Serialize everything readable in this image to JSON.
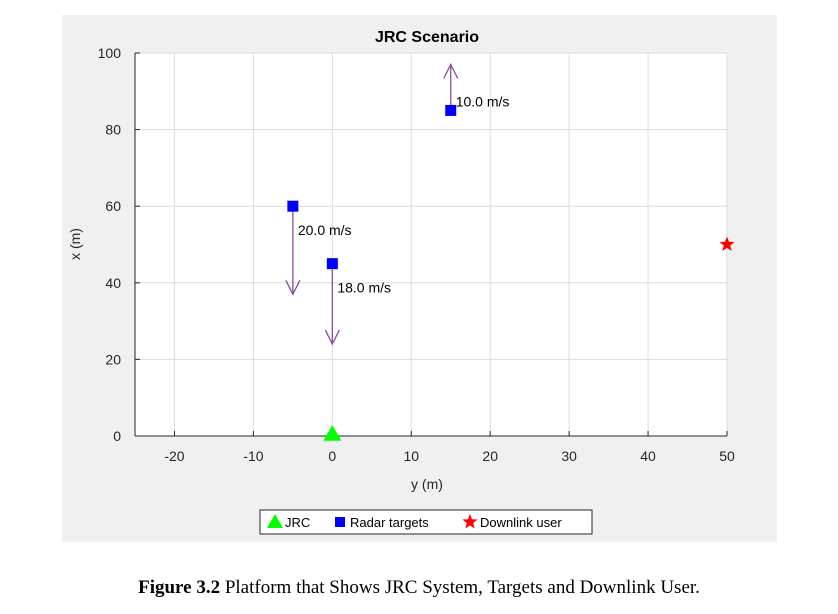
{
  "chart_data": {
    "type": "scatter",
    "title": "JRC Scenario",
    "xlabel": "y (m)",
    "ylabel": "x (m)",
    "xlim": [
      -25,
      50
    ],
    "ylim": [
      0,
      100
    ],
    "xticks": [
      -20,
      -10,
      0,
      10,
      20,
      30,
      40,
      50
    ],
    "yticks": [
      0,
      20,
      40,
      60,
      80,
      100
    ],
    "grid": true,
    "legend_position": "bottom-outside",
    "series": [
      {
        "name": "JRC",
        "marker": "triangle",
        "color": "#00ff00",
        "points": [
          {
            "x": 0,
            "y": 0
          }
        ]
      },
      {
        "name": "Radar targets",
        "marker": "square",
        "color": "#0000ff",
        "points": [
          {
            "x": 15,
            "y": 85
          },
          {
            "x": -5,
            "y": 60
          },
          {
            "x": 0,
            "y": 45
          }
        ]
      },
      {
        "name": "Downlink user",
        "marker": "star",
        "color": "#ff0000",
        "points": [
          {
            "x": 50,
            "y": 50
          }
        ]
      }
    ],
    "velocity_arrows": {
      "color": "#8b4c9e",
      "items": [
        {
          "x": 15,
          "y_from": 85,
          "y_to": 97,
          "label": "10.0 m/s"
        },
        {
          "x": -5,
          "y_from": 60,
          "y_to": 37,
          "label": "20.0 m/s"
        },
        {
          "x": 0,
          "y_from": 45,
          "y_to": 24,
          "label": "18.0 m/s"
        }
      ]
    }
  },
  "caption": {
    "label": "Figure 3.2",
    "text": " Platform that Shows JRC System, Targets and Downlink User."
  }
}
